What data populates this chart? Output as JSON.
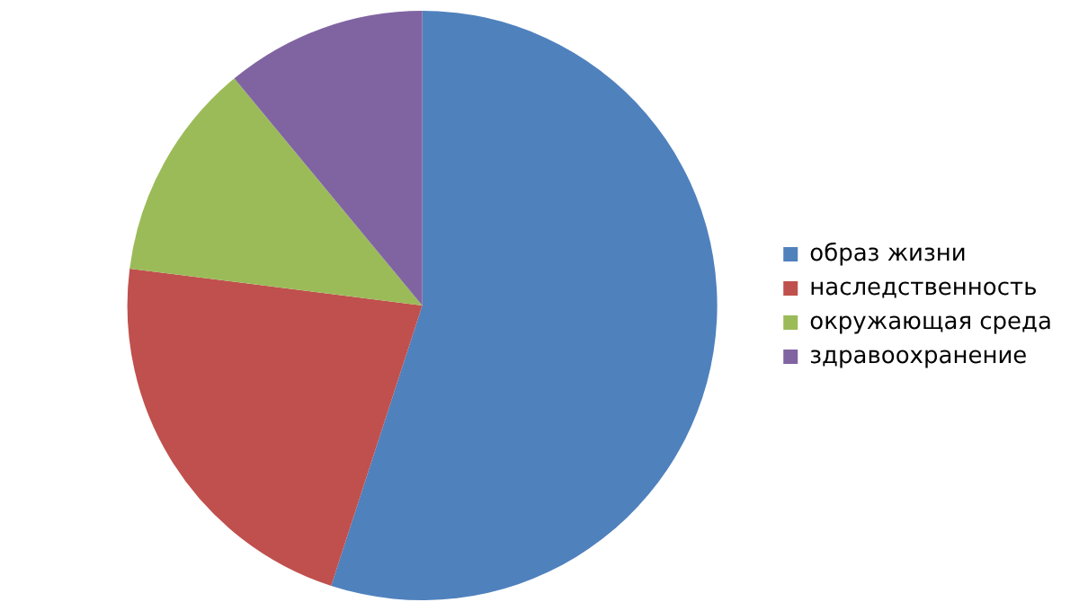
{
  "chart_data": {
    "type": "pie",
    "categories": [
      "образ жизни",
      "наследственность",
      "окружающая среда",
      "здравоохранение"
    ],
    "values": [
      55,
      22,
      12,
      11
    ],
    "colors": [
      "#4f81bd",
      "#c0504d",
      "#9bbb59",
      "#8064a2"
    ],
    "legend": "right"
  }
}
